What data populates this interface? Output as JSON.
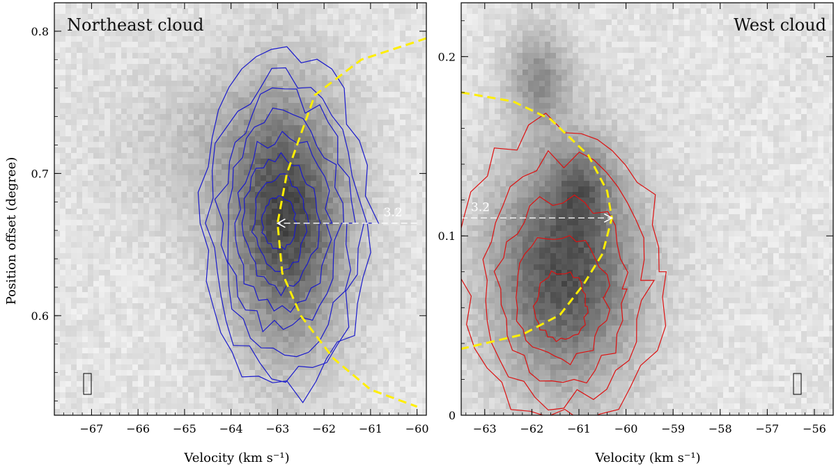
{
  "figure": {
    "shared_ylabel": "Position offset (degree)"
  },
  "chart_data": [
    {
      "type": "heatmap",
      "panel": "left",
      "title": "Northeast cloud",
      "xlabel": "Velocity (km s⁻¹)",
      "ylabel": "Position offset (degree)",
      "xlim": [
        -67.8,
        -59.8
      ],
      "ylim": [
        0.53,
        0.82
      ],
      "xticks": [
        -67,
        -66,
        -65,
        -64,
        -63,
        -62,
        -61,
        -60
      ],
      "yticks": [
        0.6,
        0.7,
        0.8
      ],
      "contour_color": "#1a1acc",
      "contour_levels": 8,
      "peak": {
        "velocity": -63.0,
        "offset": 0.665
      },
      "emission_core": {
        "velocity": -62.8,
        "offset": 0.665,
        "v_halfwidth": 1.25,
        "p_halfwidth": 0.085
      },
      "shell_fit": {
        "color": "#ffee00",
        "points": [
          [
            -59.8,
            0.795
          ],
          [
            -61.2,
            0.78
          ],
          [
            -62.2,
            0.755
          ],
          [
            -62.8,
            0.7
          ],
          [
            -63.0,
            0.665
          ],
          [
            -62.9,
            0.63
          ],
          [
            -62.5,
            0.6
          ],
          [
            -61.8,
            0.57
          ],
          [
            -61.0,
            0.548
          ],
          [
            -60.0,
            0.536
          ]
        ]
      },
      "arrow": {
        "label": "3.2",
        "v_start": -60.0,
        "v_end": -63.0,
        "offset": 0.665,
        "color": "#ffffff"
      }
    },
    {
      "type": "heatmap",
      "panel": "right",
      "title": "West cloud",
      "xlabel": "Velocity (km s⁻¹)",
      "ylabel": "",
      "xlim": [
        -63.5,
        -55.6
      ],
      "ylim": [
        0.0,
        0.23
      ],
      "xticks": [
        -63,
        -62,
        -61,
        -60,
        -59,
        -58,
        -57,
        -56
      ],
      "yticks": [
        0,
        0.1,
        0.2
      ],
      "contour_color": "#dd1111",
      "contour_levels": 5,
      "peak": {
        "velocity": -61.4,
        "offset": 0.056
      },
      "emission_core": {
        "velocity": -61.3,
        "offset": 0.08,
        "v_halfwidth": 1.5,
        "p_halfwidth": 0.06
      },
      "shell_fit": {
        "color": "#ffee00",
        "points": [
          [
            -63.5,
            0.18
          ],
          [
            -62.4,
            0.175
          ],
          [
            -61.6,
            0.165
          ],
          [
            -60.8,
            0.145
          ],
          [
            -60.4,
            0.125
          ],
          [
            -60.3,
            0.11
          ],
          [
            -60.5,
            0.09
          ],
          [
            -60.9,
            0.073
          ],
          [
            -61.4,
            0.056
          ],
          [
            -62.2,
            0.045
          ],
          [
            -63.5,
            0.037
          ]
        ]
      },
      "arrow": {
        "label": "3.2",
        "v_start": -63.5,
        "v_end": -60.3,
        "offset": 0.11,
        "color": "#ffffff"
      }
    }
  ]
}
